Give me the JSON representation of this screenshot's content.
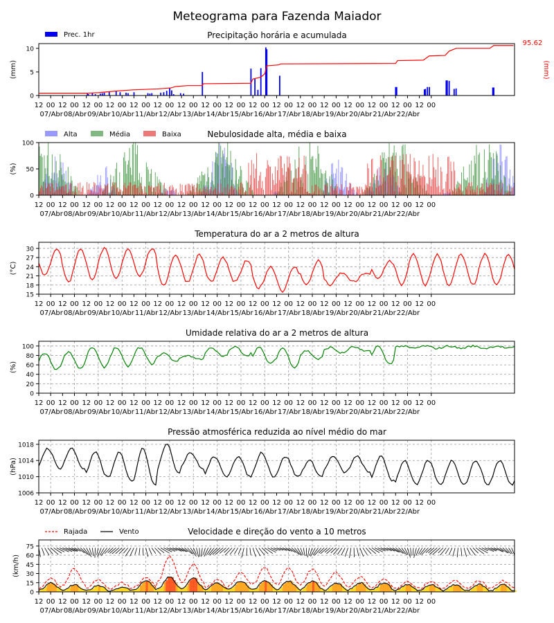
{
  "page_title": "Meteograma para Fazenda Maiador",
  "colors": {
    "prec_bar": "#0000ee",
    "acc_line": "#ff0000",
    "alta": "#9999ff",
    "media": "#2e8b2e",
    "baixa": "#e02020",
    "temp": "#ff0000",
    "umid": "#008000",
    "press": "#000000",
    "rajada": "#ff0000",
    "vento": "#000000"
  },
  "x_tick_labels": [
    "12",
    "00",
    "12",
    "00",
    "12",
    "00",
    "12",
    "00",
    "12",
    "00",
    "12",
    "00",
    "12",
    "00",
    "12",
    "00",
    "12",
    "00",
    "12",
    "00",
    "12",
    "00",
    "12",
    "00",
    "12",
    "00",
    "12",
    "00",
    "12",
    "00",
    "12",
    "00",
    "12",
    "00"
  ],
  "x_day_labels": [
    "07/Abr",
    "08/Abr",
    "09/Abr",
    "10/Abr",
    "11/Abr",
    "12/Abr",
    "13/Abr",
    "14/Abr",
    "15/Abr",
    "16/Abr",
    "17/Abr",
    "18/Abr",
    "19/Abr",
    "20/Abr",
    "21/Abr",
    "22/Abr"
  ],
  "chart_data": [
    {
      "type": "bar",
      "title": "Precipitação horária e acumulada",
      "ylabel": "(mm)",
      "ylabel_right": "(mm)",
      "ylim": [
        0,
        11
      ],
      "yticks": [
        "0",
        "5",
        "10"
      ],
      "legend": [
        "Prec. 1hr"
      ],
      "acc_total_label": "95.62",
      "bars": [
        [
          49,
          0.4
        ],
        [
          50,
          0.3
        ],
        [
          54,
          0.5
        ],
        [
          57,
          0.3
        ],
        [
          62,
          0.4
        ],
        [
          64,
          0.5
        ],
        [
          66,
          0.6
        ],
        [
          71,
          0.8
        ],
        [
          78,
          0.9
        ],
        [
          82,
          0.7
        ],
        [
          88,
          0.6
        ],
        [
          90,
          0.5
        ],
        [
          96,
          0.7
        ],
        [
          110,
          0.5
        ],
        [
          112,
          0.4
        ],
        [
          114,
          0.5
        ],
        [
          123,
          0.6
        ],
        [
          126,
          0.7
        ],
        [
          129,
          1.0
        ],
        [
          132,
          1.6
        ],
        [
          134,
          1.1
        ],
        [
          136,
          0.3
        ],
        [
          143,
          0.5
        ],
        [
          146,
          0.4
        ],
        [
          165,
          5.0
        ],
        [
          214,
          5.7
        ],
        [
          218,
          3.5
        ],
        [
          221,
          1.2
        ],
        [
          224,
          5.8
        ],
        [
          229,
          10.2
        ],
        [
          230,
          9.8
        ],
        [
          243,
          4.2
        ],
        [
          360,
          1.8
        ],
        [
          361,
          1.8
        ],
        [
          389,
          1.3
        ],
        [
          390,
          1.4
        ],
        [
          392,
          1.8
        ],
        [
          394,
          1.8
        ],
        [
          411,
          3.2
        ],
        [
          412,
          3.2
        ],
        [
          414,
          3.1
        ],
        [
          419,
          1.4
        ],
        [
          421,
          1.5
        ],
        [
          458,
          1.7
        ],
        [
          459,
          1.7
        ]
      ],
      "accum": [
        [
          0,
          0.5
        ],
        [
          49,
          0.5
        ],
        [
          60,
          0.6
        ],
        [
          75,
          0.9
        ],
        [
          95,
          1.2
        ],
        [
          120,
          1.4
        ],
        [
          133,
          1.6
        ],
        [
          138,
          1.9
        ],
        [
          150,
          2.1
        ],
        [
          165,
          2.1
        ],
        [
          166,
          2.5
        ],
        [
          214,
          2.6
        ],
        [
          216,
          3.5
        ],
        [
          224,
          3.9
        ],
        [
          228,
          4.6
        ],
        [
          230,
          6.3
        ],
        [
          242,
          6.5
        ],
        [
          244,
          6.7
        ],
        [
          360,
          6.8
        ],
        [
          362,
          7.4
        ],
        [
          388,
          7.5
        ],
        [
          394,
          8.4
        ],
        [
          410,
          8.5
        ],
        [
          414,
          9.4
        ],
        [
          421,
          10.0
        ],
        [
          455,
          10.0
        ],
        [
          459,
          10.6
        ],
        [
          479,
          10.6
        ]
      ]
    },
    {
      "type": "bar",
      "title": "Nebulosidade alta, média e baixa",
      "ylabel": "(%)",
      "ylim": [
        0,
        100
      ],
      "yticks": [
        "0",
        "50",
        "100"
      ],
      "legend": [
        "Alta",
        "Média",
        "Baixa"
      ]
    },
    {
      "type": "line",
      "title": "Temperatura do ar a 2 metros de altura",
      "ylabel": "(°C)",
      "ylim": [
        15,
        32
      ],
      "yticks": [
        "15",
        "18",
        "21",
        "24",
        "27",
        "30"
      ],
      "series_min": [
        21,
        19,
        20,
        20,
        21,
        18,
        19,
        19,
        19,
        17,
        16,
        18,
        18,
        19,
        20,
        18
      ],
      "series_max": [
        30,
        30,
        30,
        30,
        30,
        28,
        28,
        27,
        26,
        24,
        24,
        26,
        22,
        22,
        26,
        28
      ]
    },
    {
      "type": "line",
      "title": "Umidade relativa do ar a 2 metros de altura",
      "ylabel": "(%)",
      "ylim": [
        0,
        110
      ],
      "yticks": [
        "0",
        "20",
        "40",
        "60",
        "80",
        "100"
      ],
      "series_min": [
        50,
        52,
        55,
        57,
        62,
        68,
        72,
        78,
        80,
        62,
        55,
        72,
        85,
        88,
        62,
        95
      ],
      "series_max": [
        85,
        88,
        97,
        97,
        97,
        85,
        80,
        95,
        98,
        97,
        96,
        90,
        97,
        98,
        100,
        100
      ]
    },
    {
      "type": "line",
      "title": "Pressão atmosférica reduzida ao nível médio do mar",
      "ylabel": "(hPa)",
      "ylim": [
        1006,
        1019
      ],
      "yticks": [
        "1006",
        "1010",
        "1014",
        "1018"
      ],
      "series_min": [
        1012,
        1012,
        1010,
        1009,
        1008,
        1011,
        1012,
        1010,
        1010,
        1010,
        1010,
        1010,
        1011,
        1011,
        1009,
        1008
      ],
      "series_max": [
        1017,
        1017,
        1016,
        1016,
        1017,
        1018,
        1016,
        1015,
        1015,
        1016,
        1015,
        1014,
        1015,
        1015,
        1015,
        1014
      ]
    },
    {
      "type": "line",
      "title": "Velocidade e direção do vento a 10 metros",
      "ylabel": "(km/h)",
      "ylim": [
        0,
        85
      ],
      "yticks": [
        "0",
        "15",
        "30",
        "45",
        "60",
        "75"
      ],
      "legend": [
        "Rajada",
        "Vento"
      ],
      "vento_max": [
        15,
        12,
        10,
        8,
        18,
        25,
        22,
        15,
        18,
        18,
        18,
        18,
        15,
        15,
        15,
        12
      ],
      "rajada_max": [
        22,
        38,
        20,
        15,
        25,
        58,
        45,
        20,
        32,
        40,
        38,
        38,
        32,
        25,
        22,
        18
      ]
    }
  ]
}
